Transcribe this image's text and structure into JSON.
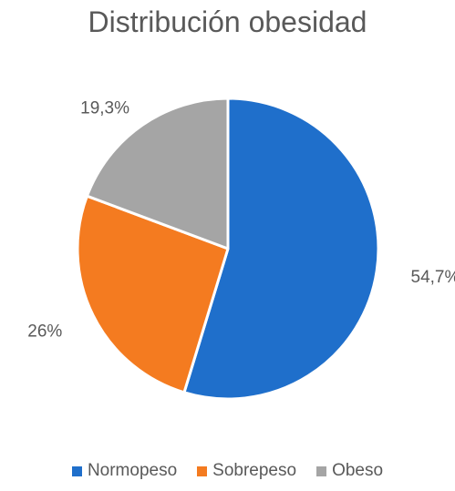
{
  "chart_data": {
    "type": "pie",
    "title": "Distribución obesidad",
    "categories": [
      "Normopeso",
      "Sobrepeso",
      "Obeso"
    ],
    "values": [
      54.7,
      26,
      19.3
    ],
    "data_labels": [
      "54,7%",
      "26%",
      "19,3%"
    ],
    "colors": [
      "#1F6FCB",
      "#F47B20",
      "#A5A5A5"
    ],
    "legend_position": "bottom",
    "start_angle_deg": 0,
    "direction": "clockwise"
  }
}
